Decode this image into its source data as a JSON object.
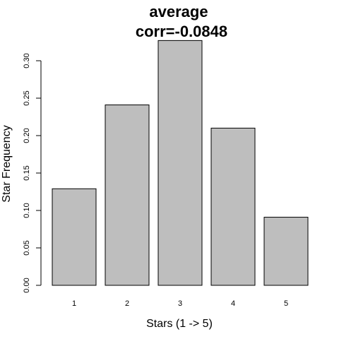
{
  "chart_data": {
    "type": "bar",
    "title": "average",
    "subtitle": "corr=-0.0848",
    "xlabel": "Stars (1 -> 5)",
    "ylabel": "Star Frequency",
    "categories": [
      "1",
      "2",
      "3",
      "4",
      "5"
    ],
    "values": [
      0.129,
      0.241,
      0.327,
      0.21,
      0.091
    ],
    "yticks": [
      "0.00",
      "0.05",
      "0.10",
      "0.15",
      "0.20",
      "0.25",
      "0.30"
    ],
    "ylim": [
      0,
      0.33
    ],
    "grid": false,
    "bar_color": "#bebebe",
    "bar_border_color": "#000000"
  }
}
